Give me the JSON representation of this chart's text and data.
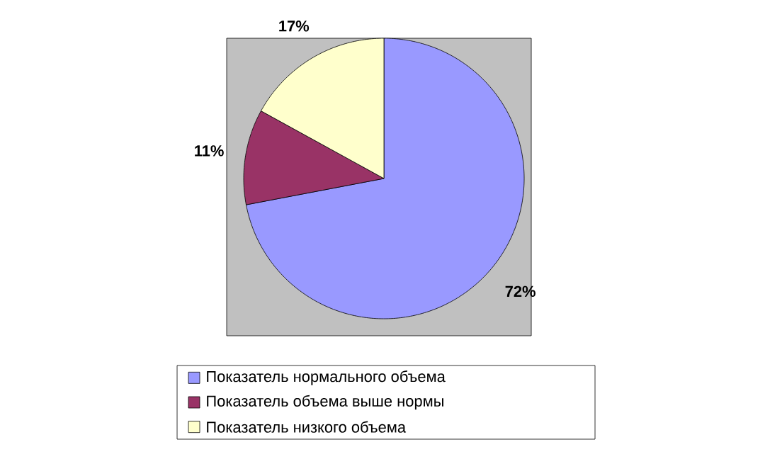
{
  "chart_data": {
    "type": "pie",
    "categories": [
      "Показатель нормального объема",
      "Показатель объема выше нормы",
      "Показатель низкого объема"
    ],
    "values": [
      72,
      11,
      17
    ],
    "colors": [
      "#9999ff",
      "#993366",
      "#ffffcc"
    ],
    "value_labels": [
      "72%",
      "11%",
      "17%"
    ],
    "legend": "bottom"
  }
}
